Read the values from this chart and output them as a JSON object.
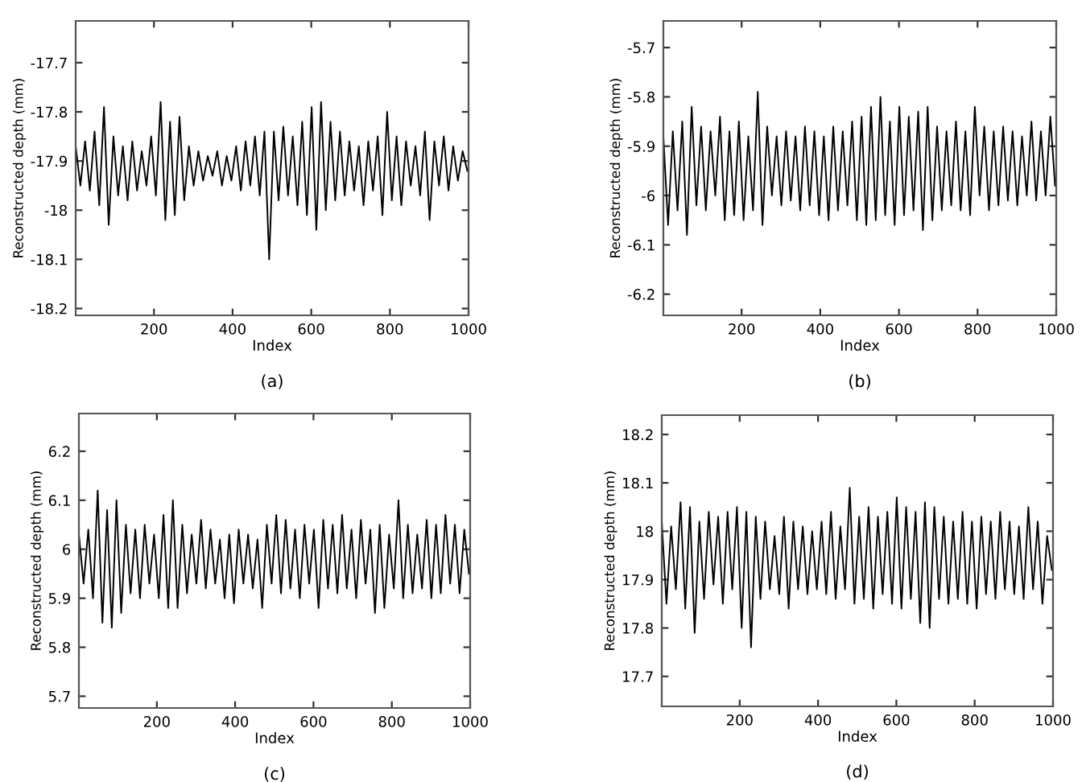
{
  "chart_data": [
    {
      "type": "line",
      "xlabel": "Index",
      "ylabel": "Reconstructed depth (mm)",
      "annotations": [
        "(a)"
      ],
      "xlim": [
        1,
        1000
      ],
      "xticks": [
        200,
        400,
        600,
        800,
        1000
      ],
      "ylim": [
        -18.214,
        -17.615
      ],
      "yticks": [
        -18.2,
        -18.1,
        -18,
        -17.9,
        -17.8,
        -17.7
      ],
      "grid": false,
      "legend": false,
      "x": [
        1,
        13,
        25,
        37,
        49,
        61,
        73,
        85,
        97,
        109,
        121,
        133,
        145,
        157,
        169,
        181,
        193,
        205,
        217,
        229,
        241,
        253,
        265,
        277,
        289,
        301,
        313,
        325,
        337,
        349,
        361,
        373,
        385,
        397,
        409,
        421,
        433,
        445,
        457,
        469,
        481,
        493,
        505,
        517,
        529,
        541,
        553,
        565,
        577,
        589,
        601,
        613,
        625,
        637,
        649,
        661,
        673,
        685,
        697,
        709,
        721,
        733,
        745,
        757,
        769,
        781,
        793,
        805,
        817,
        829,
        841,
        853,
        865,
        877,
        889,
        901,
        913,
        925,
        937,
        949,
        961,
        973,
        985,
        997
      ],
      "series": [
        {
          "color": "#000000",
          "values": [
            -17.87,
            -17.95,
            -17.86,
            -17.96,
            -17.84,
            -17.99,
            -17.79,
            -18.03,
            -17.85,
            -17.97,
            -17.87,
            -17.98,
            -17.86,
            -17.96,
            -17.88,
            -17.95,
            -17.85,
            -17.97,
            -17.78,
            -18.02,
            -17.82,
            -18.01,
            -17.81,
            -17.98,
            -17.87,
            -17.95,
            -17.88,
            -17.94,
            -17.89,
            -17.93,
            -17.88,
            -17.95,
            -17.89,
            -17.94,
            -17.87,
            -17.96,
            -17.86,
            -17.95,
            -17.85,
            -17.97,
            -17.84,
            -18.1,
            -17.84,
            -17.98,
            -17.83,
            -17.97,
            -17.85,
            -17.99,
            -17.82,
            -18.01,
            -17.79,
            -18.04,
            -17.78,
            -18.0,
            -17.82,
            -17.98,
            -17.84,
            -17.97,
            -17.86,
            -17.96,
            -17.87,
            -17.99,
            -17.86,
            -17.96,
            -17.85,
            -18.01,
            -17.8,
            -17.98,
            -17.85,
            -17.99,
            -17.86,
            -17.95,
            -17.87,
            -17.97,
            -17.84,
            -18.02,
            -17.86,
            -17.95,
            -17.85,
            -17.96,
            -17.87,
            -17.94,
            -17.88,
            -17.92
          ]
        }
      ]
    },
    {
      "type": "line",
      "xlabel": "Index",
      "ylabel": "Reconstructed depth (mm)",
      "annotations": [
        "(b)"
      ],
      "xlim": [
        1,
        1000
      ],
      "xticks": [
        200,
        400,
        600,
        800,
        1000
      ],
      "ylim": [
        -6.243,
        -5.646
      ],
      "yticks": [
        -6.2,
        -6.1,
        -6,
        -5.9,
        -5.8,
        -5.7
      ],
      "grid": false,
      "legend": false,
      "x": [
        1,
        13,
        25,
        37,
        49,
        61,
        73,
        85,
        97,
        109,
        121,
        133,
        145,
        157,
        169,
        181,
        193,
        205,
        217,
        229,
        241,
        253,
        265,
        277,
        289,
        301,
        313,
        325,
        337,
        349,
        361,
        373,
        385,
        397,
        409,
        421,
        433,
        445,
        457,
        469,
        481,
        493,
        505,
        517,
        529,
        541,
        553,
        565,
        577,
        589,
        601,
        613,
        625,
        637,
        649,
        661,
        673,
        685,
        697,
        709,
        721,
        733,
        745,
        757,
        769,
        781,
        793,
        805,
        817,
        829,
        841,
        853,
        865,
        877,
        889,
        901,
        913,
        925,
        937,
        949,
        961,
        973,
        985,
        997
      ],
      "series": [
        {
          "color": "#000000",
          "values": [
            -5.88,
            -6.06,
            -5.87,
            -6.03,
            -5.85,
            -6.08,
            -5.82,
            -6.02,
            -5.86,
            -6.03,
            -5.87,
            -6.0,
            -5.84,
            -6.05,
            -5.87,
            -6.04,
            -5.85,
            -6.05,
            -5.88,
            -6.03,
            -5.79,
            -6.06,
            -5.86,
            -6.0,
            -5.88,
            -6.02,
            -5.87,
            -6.01,
            -5.88,
            -6.03,
            -5.86,
            -6.02,
            -5.87,
            -6.04,
            -5.88,
            -6.05,
            -5.86,
            -6.03,
            -5.87,
            -6.02,
            -5.85,
            -6.05,
            -5.84,
            -6.06,
            -5.82,
            -6.05,
            -5.8,
            -6.04,
            -5.85,
            -6.06,
            -5.82,
            -6.04,
            -5.84,
            -6.03,
            -5.83,
            -6.07,
            -5.82,
            -6.05,
            -5.86,
            -6.03,
            -5.87,
            -6.02,
            -5.85,
            -6.03,
            -5.87,
            -6.04,
            -5.82,
            -6.0,
            -5.86,
            -6.03,
            -5.87,
            -6.02,
            -5.86,
            -6.01,
            -5.87,
            -6.02,
            -5.88,
            -6.0,
            -5.85,
            -6.01,
            -5.87,
            -6.0,
            -5.84,
            -5.98
          ]
        }
      ]
    },
    {
      "type": "line",
      "xlabel": "Index",
      "ylabel": "Reconstructed depth (mm)",
      "annotations": [
        "(c)"
      ],
      "xlim": [
        1,
        1000
      ],
      "xticks": [
        200,
        400,
        600,
        800,
        1000
      ],
      "ylim": [
        5.676,
        6.277
      ],
      "yticks": [
        5.7,
        5.8,
        5.9,
        6,
        6.1,
        6.2
      ],
      "grid": false,
      "legend": false,
      "x": [
        1,
        13,
        25,
        37,
        49,
        61,
        73,
        85,
        97,
        109,
        121,
        133,
        145,
        157,
        169,
        181,
        193,
        205,
        217,
        229,
        241,
        253,
        265,
        277,
        289,
        301,
        313,
        325,
        337,
        349,
        361,
        373,
        385,
        397,
        409,
        421,
        433,
        445,
        457,
        469,
        481,
        493,
        505,
        517,
        529,
        541,
        553,
        565,
        577,
        589,
        601,
        613,
        625,
        637,
        649,
        661,
        673,
        685,
        697,
        709,
        721,
        733,
        745,
        757,
        769,
        781,
        793,
        805,
        817,
        829,
        841,
        853,
        865,
        877,
        889,
        901,
        913,
        925,
        937,
        949,
        961,
        973,
        985,
        997
      ],
      "series": [
        {
          "color": "#000000",
          "values": [
            6.03,
            5.93,
            6.04,
            5.9,
            6.12,
            5.85,
            6.08,
            5.84,
            6.1,
            5.87,
            6.05,
            5.91,
            6.04,
            5.9,
            6.05,
            5.93,
            6.03,
            5.9,
            6.07,
            5.88,
            6.1,
            5.88,
            6.05,
            5.91,
            6.03,
            5.93,
            6.06,
            5.92,
            6.04,
            5.93,
            6.02,
            5.9,
            6.03,
            5.89,
            6.04,
            5.93,
            6.03,
            5.92,
            6.02,
            5.88,
            6.05,
            5.93,
            6.07,
            5.91,
            6.06,
            5.92,
            6.04,
            5.9,
            6.05,
            5.93,
            6.04,
            5.88,
            6.06,
            5.92,
            6.05,
            5.91,
            6.07,
            5.92,
            6.04,
            5.9,
            6.06,
            5.93,
            6.04,
            5.87,
            6.05,
            5.88,
            6.03,
            5.92,
            6.1,
            5.9,
            6.05,
            5.91,
            6.03,
            5.92,
            6.06,
            5.9,
            6.05,
            5.91,
            6.07,
            5.93,
            6.05,
            5.91,
            6.04,
            5.95
          ]
        }
      ]
    },
    {
      "type": "line",
      "xlabel": "Index",
      "ylabel": "Reconstructed depth (mm)",
      "annotations": [
        "(d)"
      ],
      "xlim": [
        1,
        1000
      ],
      "xticks": [
        200,
        400,
        600,
        800,
        1000
      ],
      "ylim": [
        17.638,
        18.24
      ],
      "yticks": [
        17.7,
        17.8,
        17.9,
        18,
        18.1,
        18.2
      ],
      "grid": false,
      "legend": false,
      "x": [
        1,
        13,
        25,
        37,
        49,
        61,
        73,
        85,
        97,
        109,
        121,
        133,
        145,
        157,
        169,
        181,
        193,
        205,
        217,
        229,
        241,
        253,
        265,
        277,
        289,
        301,
        313,
        325,
        337,
        349,
        361,
        373,
        385,
        397,
        409,
        421,
        433,
        445,
        457,
        469,
        481,
        493,
        505,
        517,
        529,
        541,
        553,
        565,
        577,
        589,
        601,
        613,
        625,
        637,
        649,
        661,
        673,
        685,
        697,
        709,
        721,
        733,
        745,
        757,
        769,
        781,
        793,
        805,
        817,
        829,
        841,
        853,
        865,
        877,
        889,
        901,
        913,
        925,
        937,
        949,
        961,
        973,
        985,
        997
      ],
      "series": [
        {
          "color": "#000000",
          "values": [
            18.02,
            17.85,
            18.01,
            17.88,
            18.06,
            17.84,
            18.05,
            17.79,
            18.02,
            17.86,
            18.04,
            17.89,
            18.03,
            17.85,
            18.04,
            17.88,
            18.05,
            17.8,
            18.04,
            17.76,
            18.03,
            17.86,
            18.02,
            17.88,
            17.99,
            17.87,
            18.03,
            17.84,
            18.02,
            17.88,
            18.01,
            17.87,
            18.0,
            17.88,
            18.02,
            17.87,
            18.04,
            17.86,
            18.01,
            17.88,
            18.09,
            17.85,
            18.03,
            17.86,
            18.05,
            17.84,
            18.03,
            17.87,
            18.04,
            17.85,
            18.07,
            17.84,
            18.05,
            17.86,
            18.04,
            17.81,
            18.06,
            17.8,
            18.05,
            17.86,
            18.03,
            17.85,
            18.02,
            17.86,
            18.04,
            17.85,
            18.02,
            17.84,
            18.03,
            17.87,
            18.02,
            17.86,
            18.04,
            17.88,
            18.02,
            17.87,
            18.01,
            17.86,
            18.05,
            17.88,
            18.02,
            17.85,
            17.99,
            17.92
          ]
        }
      ]
    }
  ]
}
